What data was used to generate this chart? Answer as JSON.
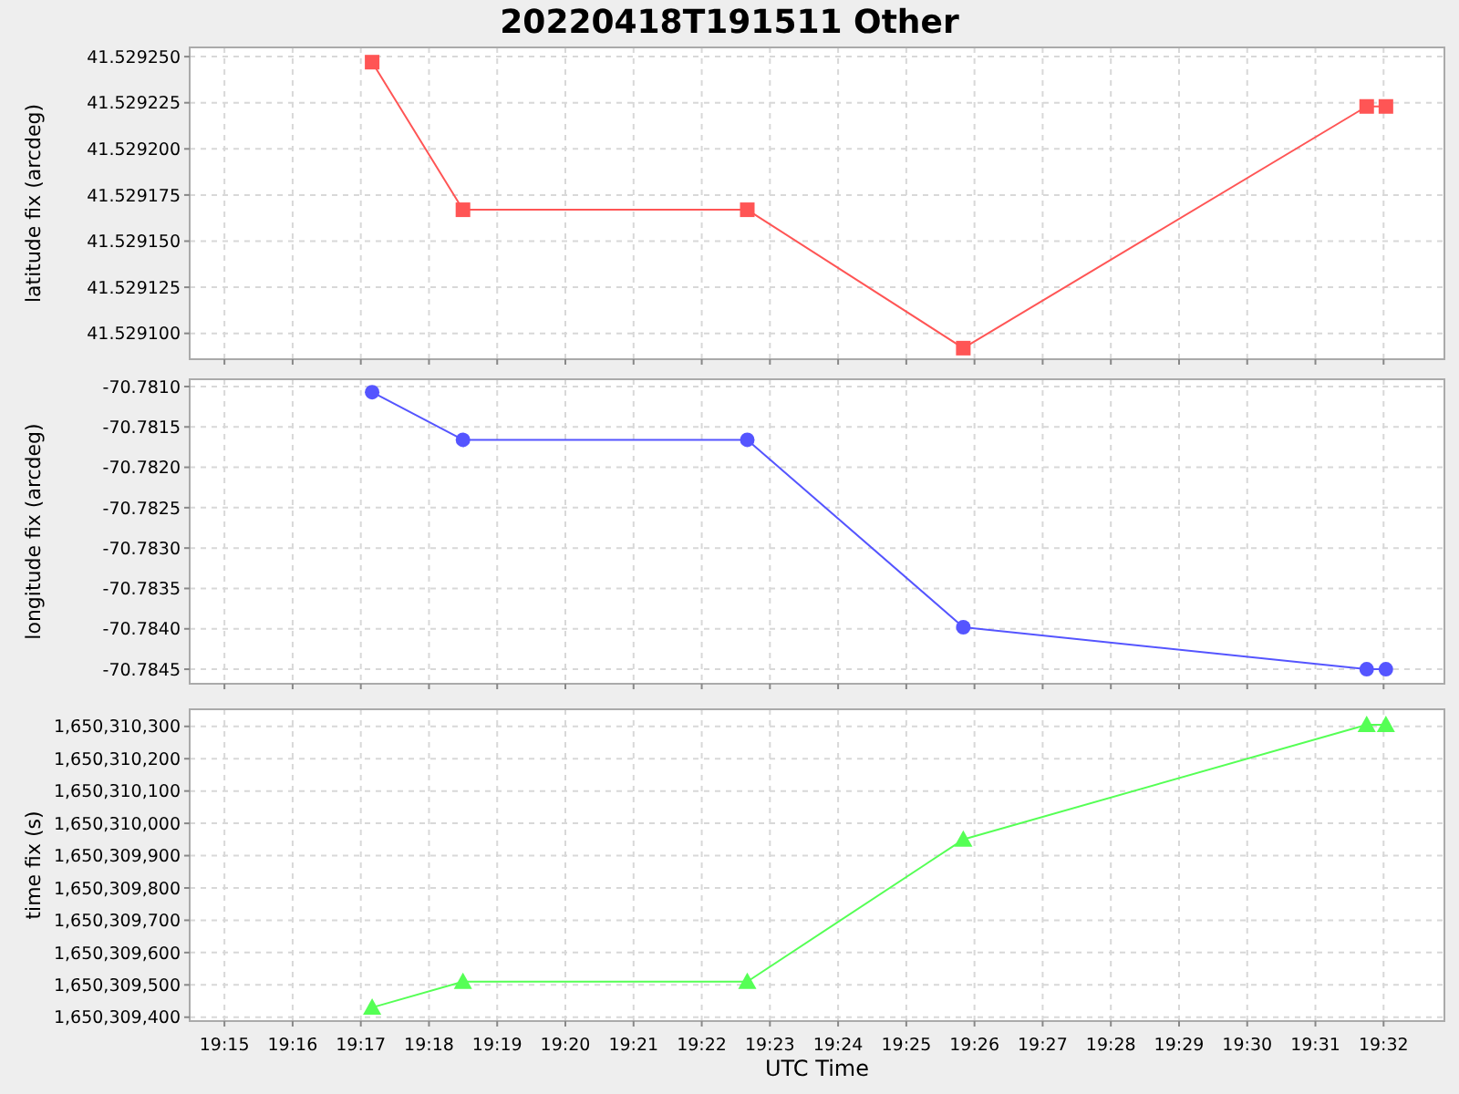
{
  "chart_data": [
    {
      "type": "line",
      "title": "20220418T191511 Other",
      "ylabel": "latitude fix (arcdeg)",
      "x": [
        19.2861,
        19.3083,
        19.3778,
        19.4306,
        19.5292,
        19.5339
      ],
      "series": [
        {
          "color": "#ff5555",
          "values": [
            41.529247,
            41.529167,
            41.529167,
            41.529092,
            41.529223,
            41.529223
          ]
        }
      ],
      "marker": "square",
      "grid": true,
      "tick_labels": "y",
      "xlim": [
        19.2415,
        19.5482
      ],
      "xticks": [
        {
          "value": 19.25,
          "label": null
        },
        {
          "value": 19.266667,
          "label": null
        },
        {
          "value": 19.283333,
          "label": null
        },
        {
          "value": 19.3,
          "label": null
        },
        {
          "value": 19.316667,
          "label": null
        },
        {
          "value": 19.333333,
          "label": null
        },
        {
          "value": 19.35,
          "label": null
        },
        {
          "value": 19.366667,
          "label": null
        },
        {
          "value": 19.383333,
          "label": null
        },
        {
          "value": 19.4,
          "label": null
        },
        {
          "value": 19.416667,
          "label": null
        },
        {
          "value": 19.433333,
          "label": null
        },
        {
          "value": 19.45,
          "label": null
        },
        {
          "value": 19.466667,
          "label": null
        },
        {
          "value": 19.483333,
          "label": null
        },
        {
          "value": 19.5,
          "label": null
        },
        {
          "value": 19.516667,
          "label": null
        },
        {
          "value": 19.533333,
          "label": null
        }
      ],
      "ylim": [
        41.529086,
        41.529255
      ],
      "yticks": [
        {
          "value": 41.5291,
          "label": "41.529100"
        },
        {
          "value": 41.529125,
          "label": "41.529125"
        },
        {
          "value": 41.52915,
          "label": "41.529150"
        },
        {
          "value": 41.529175,
          "label": "41.529175"
        },
        {
          "value": 41.5292,
          "label": "41.529200"
        },
        {
          "value": 41.529225,
          "label": "41.529225"
        },
        {
          "value": 41.52925,
          "label": "41.529250"
        }
      ]
    },
    {
      "type": "line",
      "ylabel": "longitude fix (arcdeg)",
      "x": [
        19.2861,
        19.3083,
        19.3778,
        19.4306,
        19.5292,
        19.5339
      ],
      "series": [
        {
          "color": "#5555ff",
          "values": [
            -70.78107,
            -70.78166,
            -70.78166,
            -70.78398,
            -70.7845,
            -70.7845
          ]
        }
      ],
      "marker": "circle",
      "grid": true,
      "tick_labels": "y",
      "xlim": [
        19.2415,
        19.5482
      ],
      "xticks": [
        {
          "value": 19.25,
          "label": null
        },
        {
          "value": 19.266667,
          "label": null
        },
        {
          "value": 19.283333,
          "label": null
        },
        {
          "value": 19.3,
          "label": null
        },
        {
          "value": 19.316667,
          "label": null
        },
        {
          "value": 19.333333,
          "label": null
        },
        {
          "value": 19.35,
          "label": null
        },
        {
          "value": 19.366667,
          "label": null
        },
        {
          "value": 19.383333,
          "label": null
        },
        {
          "value": 19.4,
          "label": null
        },
        {
          "value": 19.416667,
          "label": null
        },
        {
          "value": 19.433333,
          "label": null
        },
        {
          "value": 19.45,
          "label": null
        },
        {
          "value": 19.466667,
          "label": null
        },
        {
          "value": 19.483333,
          "label": null
        },
        {
          "value": 19.5,
          "label": null
        },
        {
          "value": 19.516667,
          "label": null
        },
        {
          "value": 19.533333,
          "label": null
        }
      ],
      "ylim": [
        -70.78468,
        -70.78091
      ],
      "yticks": [
        {
          "value": -70.7845,
          "label": "-70.7845"
        },
        {
          "value": -70.784,
          "label": "-70.7840"
        },
        {
          "value": -70.7835,
          "label": "-70.7835"
        },
        {
          "value": -70.783,
          "label": "-70.7830"
        },
        {
          "value": -70.7825,
          "label": "-70.7825"
        },
        {
          "value": -70.782,
          "label": "-70.7820"
        },
        {
          "value": -70.7815,
          "label": "-70.7815"
        },
        {
          "value": -70.781,
          "label": "-70.7810"
        }
      ]
    },
    {
      "type": "line",
      "xlabel": "UTC Time",
      "ylabel": "time fix (s)",
      "x": [
        19.2861,
        19.3083,
        19.3778,
        19.4306,
        19.5292,
        19.5339
      ],
      "series": [
        {
          "color": "#55ff55",
          "values": [
            1650309430,
            1650309510,
            1650309510,
            1650309950,
            1650310305,
            1650310305
          ]
        }
      ],
      "marker": "triangle",
      "grid": true,
      "xlim": [
        19.2415,
        19.5482
      ],
      "xticks": [
        {
          "value": 19.25,
          "label": "19:15"
        },
        {
          "value": 19.266667,
          "label": "19:16"
        },
        {
          "value": 19.283333,
          "label": "19:17"
        },
        {
          "value": 19.3,
          "label": "19:18"
        },
        {
          "value": 19.316667,
          "label": "19:19"
        },
        {
          "value": 19.333333,
          "label": "19:20"
        },
        {
          "value": 19.35,
          "label": "19:21"
        },
        {
          "value": 19.366667,
          "label": "19:22"
        },
        {
          "value": 19.383333,
          "label": "19:23"
        },
        {
          "value": 19.4,
          "label": "19:24"
        },
        {
          "value": 19.416667,
          "label": "19:25"
        },
        {
          "value": 19.433333,
          "label": "19:26"
        },
        {
          "value": 19.45,
          "label": "19:27"
        },
        {
          "value": 19.466667,
          "label": "19:28"
        },
        {
          "value": 19.483333,
          "label": "19:29"
        },
        {
          "value": 19.5,
          "label": "19:30"
        },
        {
          "value": 19.516667,
          "label": "19:31"
        },
        {
          "value": 19.533333,
          "label": "19:32"
        }
      ],
      "ylim": [
        1650309388,
        1650310353
      ],
      "yticks": [
        {
          "value": 1650309400,
          "label": "1,650,309,400"
        },
        {
          "value": 1650309500,
          "label": "1,650,309,500"
        },
        {
          "value": 1650309600,
          "label": "1,650,309,600"
        },
        {
          "value": 1650309700,
          "label": "1,650,309,700"
        },
        {
          "value": 1650309800,
          "label": "1,650,309,800"
        },
        {
          "value": 1650309900,
          "label": "1,650,309,900"
        },
        {
          "value": 1650310000,
          "label": "1,650,310,000"
        },
        {
          "value": 1650310100,
          "label": "1,650,310,100"
        },
        {
          "value": 1650310200,
          "label": "1,650,310,200"
        },
        {
          "value": 1650310300,
          "label": "1,650,310,300"
        }
      ]
    }
  ]
}
